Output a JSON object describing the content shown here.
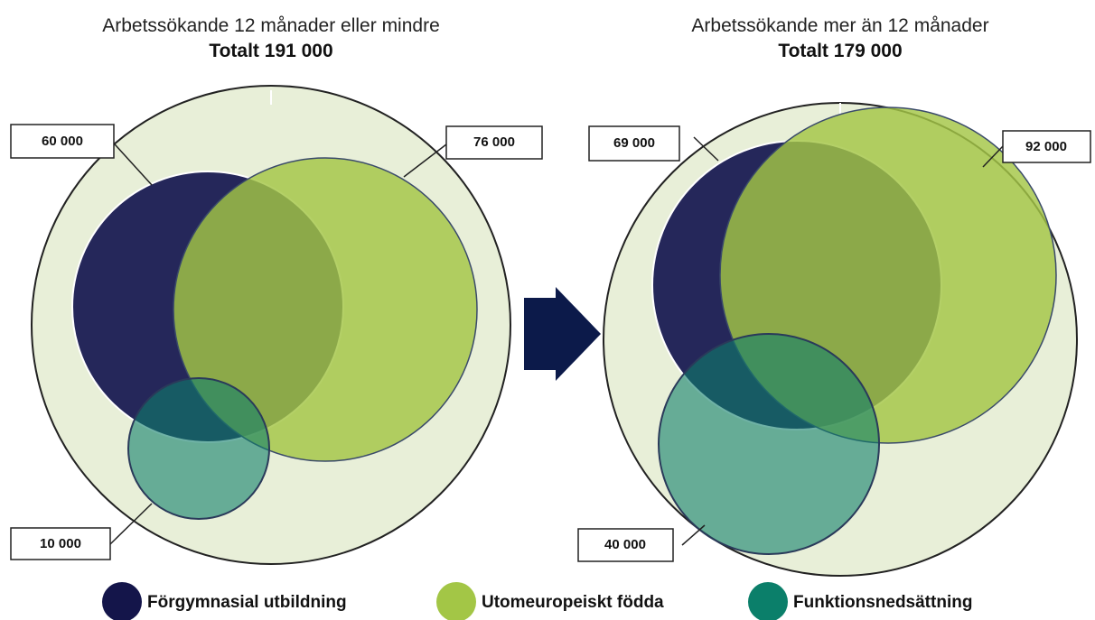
{
  "panels": [
    {
      "title": "Arbetssökande 12 månader eller mindre",
      "total": "Totalt 191 000",
      "labels": [
        "60 000",
        "76 000",
        "10 000"
      ]
    },
    {
      "title": "Arbetssökande mer än 12 månader",
      "total": "Totalt 179 000",
      "labels": [
        "69 000",
        "92 000",
        "40 000"
      ]
    }
  ],
  "legend": [
    "Förgymnasial utbildning",
    "Utomeuropeiskt födda",
    "Funktionsnedsättning"
  ]
}
